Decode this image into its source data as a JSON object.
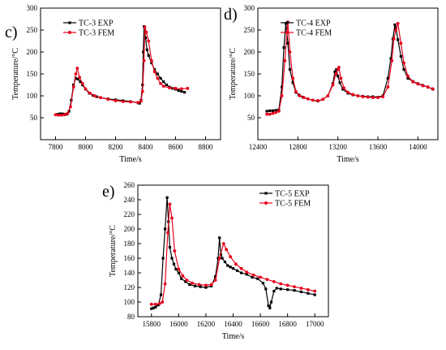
{
  "colors": {
    "exp": "#000000",
    "fem": "#e8001c"
  },
  "chart_data": [
    {
      "type": "line",
      "panel": "c)",
      "xlabel": "Time/s",
      "ylabel": "Temperature/°C",
      "xlim": [
        7700,
        8900
      ],
      "ylim": [
        0,
        300
      ],
      "xticks": [
        7800,
        8000,
        8200,
        8400,
        8600,
        8800
      ],
      "yticks": [
        50,
        100,
        150,
        200,
        250,
        300
      ],
      "legend_placement": "top-left",
      "series": [
        {
          "name": "TC-3 EXP",
          "marker": "square",
          "x": [
            7800,
            7815,
            7830,
            7845,
            7860,
            7875,
            7890,
            7905,
            7920,
            7935,
            7950,
            7965,
            7980,
            8000,
            8025,
            8050,
            8075,
            8100,
            8150,
            8200,
            8250,
            8300,
            8350,
            8360,
            8370,
            8380,
            8385,
            8390,
            8400,
            8410,
            8420,
            8440,
            8460,
            8480,
            8500,
            8520,
            8540,
            8560,
            8580,
            8600,
            8620,
            8640,
            8660
          ],
          "y": [
            57,
            58,
            59,
            59,
            58,
            58,
            65,
            90,
            125,
            140,
            138,
            132,
            125,
            115,
            106,
            101,
            98,
            96,
            93,
            91,
            89,
            87,
            84,
            83,
            90,
            125,
            200,
            258,
            232,
            205,
            192,
            175,
            160,
            150,
            140,
            132,
            125,
            120,
            117,
            115,
            112,
            110,
            108
          ]
        },
        {
          "name": "TC-3 FEM",
          "marker": "circle",
          "x": [
            7800,
            7820,
            7840,
            7860,
            7880,
            7900,
            7920,
            7935,
            7945,
            7960,
            7980,
            8000,
            8030,
            8060,
            8100,
            8150,
            8200,
            8250,
            8300,
            8350,
            8370,
            8380,
            8390,
            8395,
            8405,
            8420,
            8440,
            8460,
            8480,
            8500,
            8520,
            8560,
            8600,
            8640,
            8680
          ],
          "y": [
            57,
            56,
            56,
            57,
            60,
            75,
            120,
            150,
            163,
            142,
            128,
            116,
            106,
            100,
            96,
            92,
            89,
            87,
            86,
            85,
            88,
            110,
            180,
            257,
            245,
            225,
            180,
            155,
            140,
            128,
            122,
            118,
            117,
            116,
            117
          ]
        }
      ]
    },
    {
      "type": "line",
      "panel": "d)",
      "xlabel": "Time/s",
      "ylabel": "Temperature/°C",
      "xlim": [
        12400,
        14200
      ],
      "ylim": [
        0,
        300
      ],
      "xticks": [
        12400,
        12800,
        13200,
        13600,
        14000
      ],
      "yticks": [
        50,
        100,
        150,
        200,
        250,
        300
      ],
      "legend_placement": "top-left",
      "series": [
        {
          "name": "TC-4 EXP",
          "marker": "square",
          "x": [
            12490,
            12520,
            12550,
            12580,
            12610,
            12640,
            12660,
            12680,
            12700,
            12720,
            12750,
            12780,
            12810,
            12850,
            12900,
            12950,
            13000,
            13050,
            13100,
            13150,
            13170,
            13185,
            13200,
            13220,
            13250,
            13300,
            13350,
            13400,
            13450,
            13500,
            13550,
            13600,
            13650,
            13700,
            13730,
            13750,
            13770,
            13780,
            13800,
            13830,
            13860,
            13900,
            13950,
            14000,
            14050,
            14100,
            14150
          ],
          "y": [
            65,
            66,
            66,
            67,
            68,
            120,
            210,
            265,
            220,
            160,
            130,
            108,
            102,
            97,
            93,
            90,
            88,
            92,
            100,
            128,
            155,
            160,
            145,
            130,
            115,
            106,
            102,
            100,
            99,
            98,
            98,
            97,
            100,
            140,
            185,
            230,
            262,
            255,
            228,
            190,
            160,
            140,
            133,
            128,
            124,
            120,
            115
          ]
        },
        {
          "name": "TC-4 FEM",
          "marker": "circle",
          "x": [
            12490,
            12520,
            12550,
            12580,
            12610,
            12640,
            12670,
            12690,
            12700,
            12720,
            12750,
            12780,
            12820,
            12860,
            12900,
            12950,
            13000,
            13050,
            13100,
            13150,
            13180,
            13200,
            13210,
            13230,
            13260,
            13300,
            13350,
            13400,
            13450,
            13500,
            13550,
            13600,
            13650,
            13700,
            13740,
            13760,
            13780,
            13800,
            13830,
            13860,
            13900,
            13950,
            14000,
            14050,
            14100,
            14150
          ],
          "y": [
            58,
            58,
            60,
            62,
            65,
            100,
            180,
            245,
            268,
            200,
            140,
            110,
            100,
            96,
            93,
            90,
            89,
            92,
            100,
            125,
            150,
            160,
            165,
            140,
            118,
            108,
            103,
            100,
            98,
            97,
            96,
            96,
            98,
            120,
            180,
            230,
            250,
            265,
            220,
            175,
            145,
            132,
            127,
            123,
            120,
            116
          ]
        }
      ]
    },
    {
      "type": "line",
      "panel": "e)",
      "xlabel": "Time/s",
      "ylabel": "Temperature/°C",
      "xlim": [
        15700,
        17100
      ],
      "ylim": [
        80,
        260
      ],
      "xticks": [
        15800,
        16000,
        16200,
        16400,
        16600,
        16800,
        17000
      ],
      "yticks": [
        80,
        100,
        120,
        140,
        160,
        180,
        200,
        220,
        240,
        260
      ],
      "legend_placement": "top-right",
      "series": [
        {
          "name": "TC-5 EXP",
          "marker": "square",
          "x": [
            15800,
            15815,
            15830,
            15850,
            15870,
            15885,
            15900,
            15915,
            15925,
            15935,
            15950,
            15965,
            15980,
            16000,
            16020,
            16050,
            16080,
            16120,
            16160,
            16200,
            16240,
            16270,
            16290,
            16300,
            16310,
            16320,
            16340,
            16360,
            16380,
            16400,
            16430,
            16460,
            16500,
            16540,
            16580,
            16620,
            16640,
            16660,
            16670,
            16680,
            16700,
            16720,
            16750,
            16800,
            16850,
            16900,
            16950,
            17000
          ],
          "y": [
            91,
            92,
            93,
            96,
            110,
            160,
            200,
            243,
            210,
            175,
            160,
            152,
            145,
            140,
            132,
            128,
            124,
            122,
            121,
            120,
            122,
            135,
            160,
            188,
            165,
            160,
            155,
            150,
            148,
            146,
            143,
            140,
            138,
            134,
            132,
            126,
            118,
            95,
            92,
            100,
            115,
            119,
            118,
            117,
            116,
            114,
            112,
            110
          ]
        },
        {
          "name": "TC-5 FEM",
          "marker": "circle",
          "x": [
            15800,
            15830,
            15860,
            15880,
            15900,
            15920,
            15935,
            15950,
            15970,
            16000,
            16030,
            16060,
            16100,
            16150,
            16200,
            16240,
            16270,
            16300,
            16330,
            16350,
            16380,
            16420,
            16460,
            16500,
            16550,
            16600,
            16650,
            16700,
            16750,
            16800,
            16850,
            16900,
            16950,
            17000
          ],
          "y": [
            97,
            97,
            98,
            100,
            125,
            195,
            234,
            215,
            170,
            145,
            136,
            130,
            126,
            124,
            123,
            124,
            130,
            160,
            180,
            172,
            162,
            152,
            146,
            141,
            137,
            134,
            131,
            128,
            125,
            123,
            121,
            119,
            117,
            115
          ]
        }
      ]
    }
  ]
}
